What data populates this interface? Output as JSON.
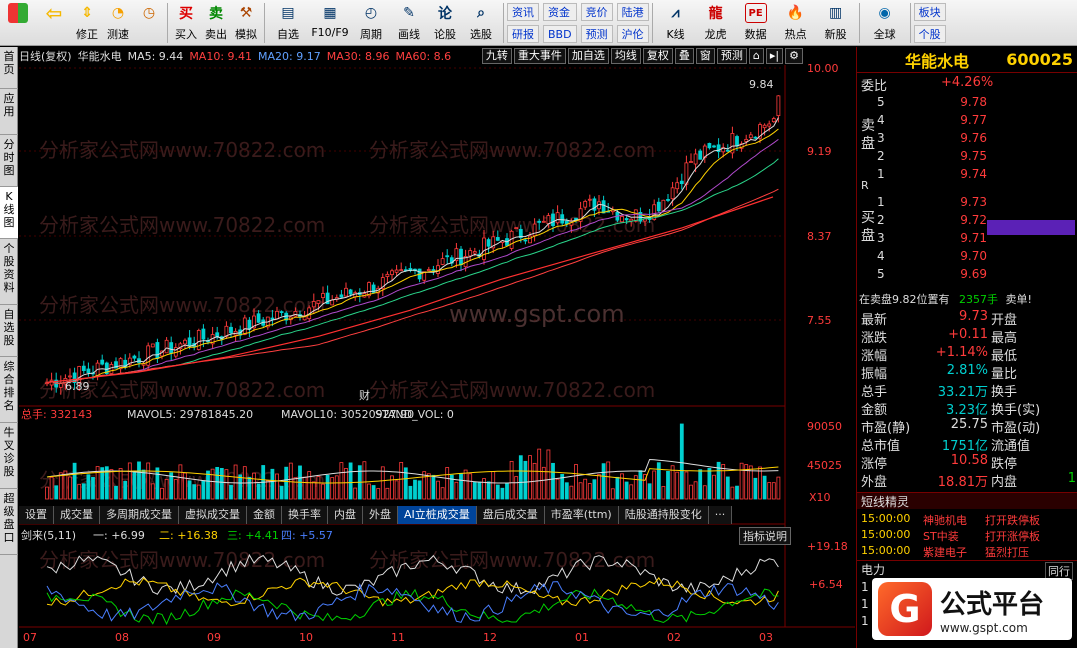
{
  "toolbar": {
    "buttons": [
      {
        "icon": "grid-icon",
        "label": "",
        "color": "#d33"
      },
      {
        "icon": "back-arrow-icon",
        "label": "",
        "color": "#f5b800"
      },
      {
        "icon": "updown-arrows-icon",
        "label": "修正",
        "color": "#f5b800"
      },
      {
        "icon": "speed-icon",
        "label": "测速",
        "color": "#f5a000"
      },
      {
        "icon": "clock-icon",
        "label": "",
        "color": "#f5a000"
      },
      {
        "icon": "buy-icon",
        "label": "买入",
        "color": "#d00"
      },
      {
        "icon": "sell-icon",
        "label": "卖出",
        "color": "#080"
      },
      {
        "icon": "hammer-icon",
        "label": "模拟",
        "color": "#a40"
      },
      {
        "icon": "watchlist-icon",
        "label": "自选",
        "color": "#036"
      },
      {
        "icon": "f10-icon",
        "label": "F10/F9",
        "color": "#036"
      },
      {
        "icon": "period-icon",
        "label": "周期",
        "color": "#036"
      },
      {
        "icon": "draw-icon",
        "label": "画线",
        "color": "#036"
      },
      {
        "icon": "forum-icon",
        "label": "论股",
        "color": "#036"
      },
      {
        "icon": "select-stock-icon",
        "label": "选股",
        "color": "#036"
      }
    ],
    "text_buttons": [
      "资讯",
      "资金",
      "竞价",
      "陆港",
      "研报",
      "BBD",
      "预测",
      "沪伦"
    ],
    "icon_buttons_2": [
      {
        "icon": "kline-icon",
        "label": "K线"
      },
      {
        "icon": "dragon-icon",
        "label": "龙虎"
      },
      {
        "icon": "data-icon",
        "label": "数据"
      },
      {
        "icon": "hot-icon",
        "label": "热点"
      },
      {
        "icon": "newstock-icon",
        "label": "新股"
      },
      {
        "icon": "globe-icon",
        "label": "全球"
      }
    ],
    "right_buttons": [
      "板块",
      "个股"
    ]
  },
  "sidebar": {
    "tabs": [
      "首页",
      "应用",
      "分时图",
      "K线图",
      "个股资料",
      "自选股",
      "综合排名",
      "牛叉诊股",
      "超级盘口"
    ]
  },
  "chart": {
    "header": {
      "mode": "日线(复权)",
      "name": "华能水电",
      "ma5": "MA5: 9.44",
      "ma10": "MA10: 9.41",
      "ma20": "MA20: 9.17",
      "ma30": "MA30: 8.96",
      "ma60": "MA60: 8.6"
    },
    "tools": [
      "九转",
      "重大事件",
      "加自选",
      "均线",
      "复权",
      "叠",
      "窗",
      "预测"
    ],
    "y_ticks": [
      "10.00",
      "9.19",
      "8.37",
      "7.55"
    ],
    "high_label": "9.84",
    "low_label": "6.89",
    "fin_marker": "财",
    "volume": {
      "label": "总手: 332143",
      "mavol5": "MAVOL5: 29781845.20",
      "mavol10": "MAVOL10: 30520927.90",
      "stand": "STAND_VOL: 0",
      "ticks": [
        "90050",
        "45025"
      ],
      "unit": "X10"
    },
    "indicator_tabs": [
      "设置",
      "成交量",
      "多周期成交量",
      "虚拟成交量",
      "金额",
      "换手率",
      "内盘",
      "外盘",
      "AI立桩成交量",
      "盘后成交量",
      "市盈率(ttm)",
      "陆股通持股变化",
      "···"
    ],
    "active_indicator_tab": "AI立桩成交量",
    "indicator": {
      "name": "剑来(5,11)",
      "l1": "一: +6.99",
      "l2": "二: +16.38",
      "l3": "三: +4.41",
      "l4": "四: +5.57",
      "help": "指标说明",
      "ticks": [
        "+19.18",
        "+6.54"
      ]
    },
    "x_labels": [
      "07",
      "08",
      "09",
      "10",
      "11",
      "12",
      "01",
      "02",
      "03"
    ],
    "watermarks": [
      "分析家公式网www.70822.com",
      "www.gspt.com"
    ],
    "chart_data": {
      "type": "line",
      "title": "华能水电",
      "x": [
        "07",
        "08",
        "09",
        "10",
        "11",
        "12",
        "01",
        "02",
        "03"
      ],
      "series": [
        {
          "name": "MA60",
          "values": [
            6.95,
            7.05,
            7.2,
            7.4,
            7.65,
            7.95,
            8.2,
            8.45,
            8.75
          ]
        },
        {
          "name": "MA20",
          "values": [
            7.0,
            7.15,
            7.35,
            7.6,
            7.95,
            8.45,
            8.65,
            8.7,
            9.17
          ]
        }
      ],
      "ylim": [
        6.8,
        10.0
      ]
    }
  },
  "quote": {
    "name": "华能水电",
    "code": "600025",
    "weibi_label": "委比",
    "weibi": "+4.26%",
    "sell_label": "卖盘",
    "buy_label": "买盘",
    "sells": [
      {
        "lvl": "5",
        "price": "9.78"
      },
      {
        "lvl": "4",
        "price": "9.77"
      },
      {
        "lvl": "3",
        "price": "9.76"
      },
      {
        "lvl": "2",
        "price": "9.75"
      },
      {
        "lvl": "1",
        "price": "9.74"
      }
    ],
    "buys": [
      {
        "lvl": "1",
        "price": "9.73"
      },
      {
        "lvl": "2",
        "price": "9.72"
      },
      {
        "lvl": "3",
        "price": "9.71"
      },
      {
        "lvl": "4",
        "price": "9.70"
      },
      {
        "lvl": "5",
        "price": "9.69"
      }
    ],
    "r_label": "R",
    "in_sell_text": "在卖盘9.82位置有",
    "in_sell_qty": "2357手",
    "in_sell_suffix": "卖单!",
    "stats": [
      {
        "l1": "最新",
        "v1": "9.73",
        "l2": "开盘",
        "v2": ""
      },
      {
        "l1": "涨跌",
        "v1": "+0.11",
        "l2": "最高",
        "v2": ""
      },
      {
        "l1": "涨幅",
        "v1": "+1.14%",
        "l2": "最低",
        "v2": ""
      },
      {
        "l1": "振幅",
        "v1": "2.81%",
        "l2": "量比",
        "v2": ""
      },
      {
        "l1": "总手",
        "v1": "33.21万",
        "l2": "换手",
        "v2": ""
      },
      {
        "l1": "金额",
        "v1": "3.23亿",
        "l2": "换手(实)",
        "v2": ""
      },
      {
        "l1": "市盈(静)",
        "v1": "25.75",
        "l2": "市盈(动)",
        "v2": ""
      },
      {
        "l1": "总市值",
        "v1": "1751亿",
        "l2": "流通值",
        "v2": ""
      },
      {
        "l1": "涨停",
        "v1": "10.58",
        "l2": "跌停",
        "v2": ""
      },
      {
        "l1": "外盘",
        "v1": "18.81万",
        "l2": "内盘",
        "v2": "1"
      }
    ],
    "sprite_title": "短线精灵",
    "sprites": [
      {
        "time": "15:00:00",
        "name": "神驰机电",
        "event": "打开跌停板"
      },
      {
        "time": "15:00:00",
        "name": "ST中装",
        "event": "打开涨停板"
      },
      {
        "time": "15:00:00",
        "name": "紫建电子",
        "event": "猛烈打压"
      }
    ],
    "bottom_label": "电力",
    "bottom_right": "同行",
    "bottom_rows": [
      "1",
      "1",
      "1"
    ]
  },
  "logo": {
    "mark": "G",
    "name": "公式平台",
    "url": "www.gspt.com"
  },
  "colors": {
    "up": "#ff3b3b",
    "down": "#00d0d0",
    "accent": "#ffd200",
    "active_tab": "#00449a"
  }
}
